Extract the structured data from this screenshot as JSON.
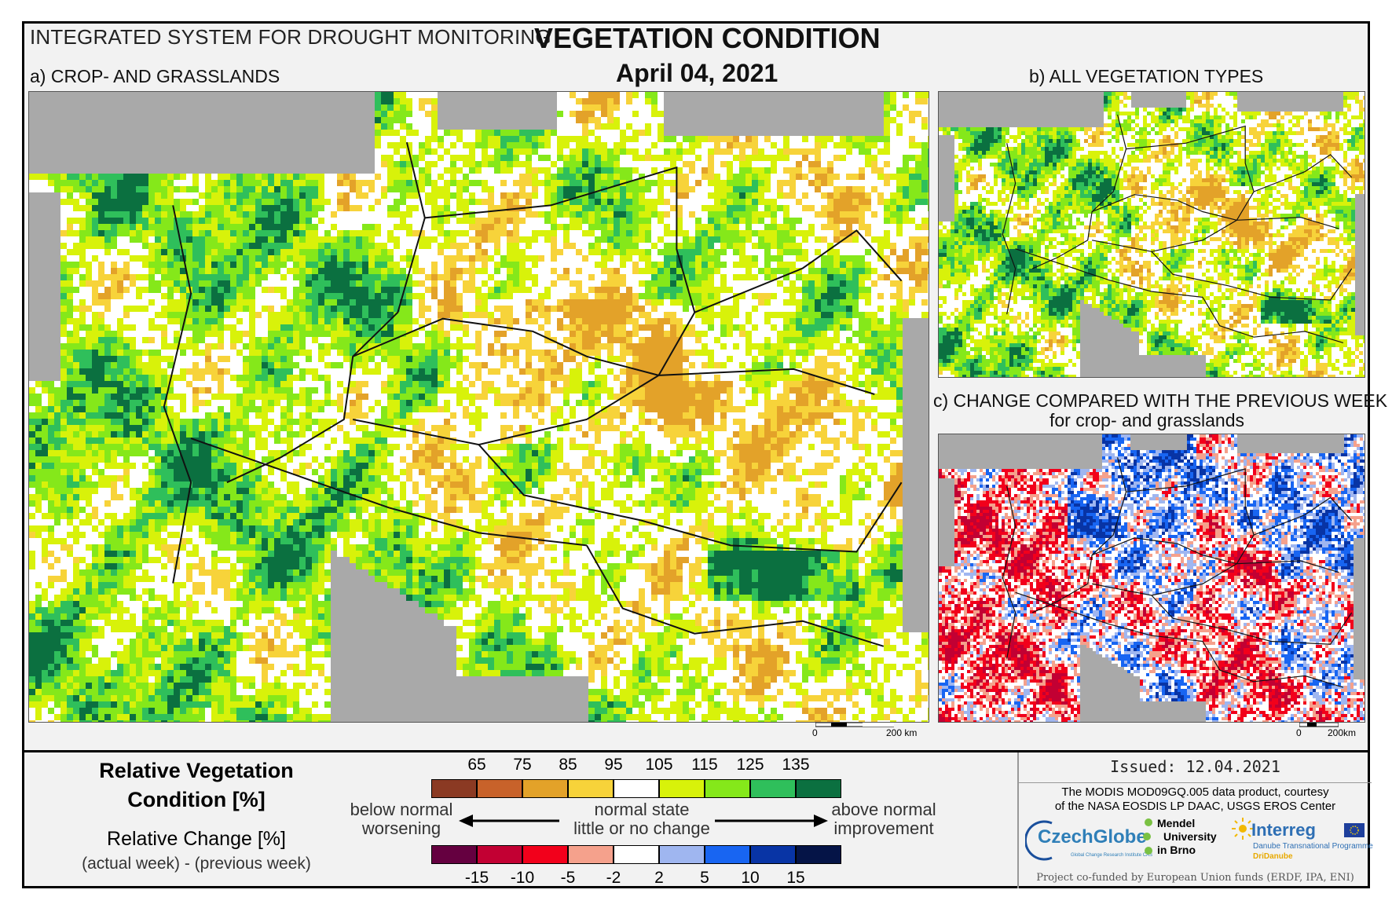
{
  "header": {
    "system_title": "INTEGRATED SYSTEM FOR DROUGHT MONITORING",
    "main_title": "VEGETATION CONDITION",
    "date": "April 04, 2021"
  },
  "panels": {
    "a_label": "a) CROP- AND GRASSLANDS",
    "b_label": "b) ALL VEGETATION TYPES",
    "c_label": "c) CHANGE COMPARED WITH THE PREVIOUS WEEK",
    "c_sublabel": "for crop- and grasslands"
  },
  "scalebars": {
    "a": {
      "zero": "0",
      "end": "200 km"
    },
    "c": {
      "zero": "0",
      "end": "200km"
    }
  },
  "legend": {
    "title_line1": "Relative Vegetation",
    "title_line2": "Condition [%]",
    "change_title": "Relative Change [%]",
    "change_sub": "(actual week) - (previous week)",
    "condition_ticks": [
      "65",
      "75",
      "85",
      "95",
      "105",
      "115",
      "125",
      "135"
    ],
    "condition_colors": [
      "#8b3a23",
      "#c8622a",
      "#e3a229",
      "#f7d33a",
      "#ffffff",
      "#d8f20a",
      "#85e81a",
      "#2fbf5b",
      "#0b7040"
    ],
    "change_ticks": [
      "-15",
      "-10",
      "-5",
      "-2",
      "2",
      "5",
      "10",
      "15"
    ],
    "change_colors": [
      "#650040",
      "#c20033",
      "#f2001b",
      "#f5a18c",
      "#ffffff",
      "#9fb6f0",
      "#1865f2",
      "#0834a5",
      "#051447"
    ],
    "left_text_1": "below normal",
    "left_text_2": "worsening",
    "center_text_1": "normal state",
    "center_text_2": "little or no change",
    "right_text_1": "above normal",
    "right_text_2": "improvement"
  },
  "footer": {
    "issued": "Issued: 12.04.2021",
    "credit_line1": "The MODIS MOD09GQ.005 data product, courtesy",
    "credit_line2": "of the NASA EOSDIS LP DAAC, USGS EROS Center",
    "czechglobe": "CzechGlobe",
    "czechglobe_sub": "Global Change Research Institute CAS",
    "mendel_1": "Mendel",
    "mendel_2": "University",
    "mendel_3": "in Brno",
    "interreg": "Interreg",
    "interreg_sub1": "Danube Transnational Programme",
    "interreg_sub2": "DriDanube",
    "cofunded": "Project co-funded by European Union funds (ERDF, IPA, ENI)"
  }
}
